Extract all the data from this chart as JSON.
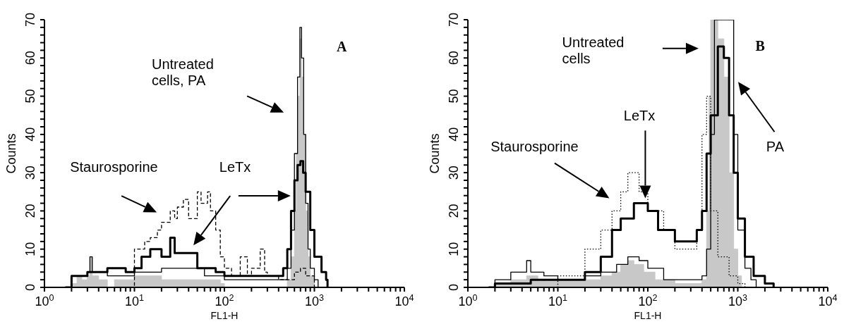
{
  "chart_data": [
    {
      "type": "step",
      "title": "A",
      "xlabel": "FL1-H",
      "ylabel": "Counts",
      "log": "x",
      "xlim": [
        1,
        10000
      ],
      "ylim": [
        0,
        70
      ],
      "xticks": [
        {
          "value": 1,
          "label": "10$^{0}$"
        },
        {
          "value": 2,
          "label": null
        },
        {
          "value": 3,
          "label": null
        },
        {
          "value": 4,
          "label": null
        },
        {
          "value": 5,
          "label": null
        },
        {
          "value": 6,
          "label": null
        },
        {
          "value": 7,
          "label": null
        },
        {
          "value": 8,
          "label": null
        },
        {
          "value": 9,
          "label": null
        },
        {
          "value": 10,
          "label": "10$^{1}$"
        },
        {
          "value": 20,
          "label": null
        },
        {
          "value": 30,
          "label": null
        },
        {
          "value": 40,
          "label": null
        },
        {
          "value": 50,
          "label": null
        },
        {
          "value": 60,
          "label": null
        },
        {
          "value": 70,
          "label": null
        },
        {
          "value": 80,
          "label": null
        },
        {
          "value": 90,
          "label": null
        },
        {
          "value": 100,
          "label": "10$^{2}$"
        },
        {
          "value": 200,
          "label": null
        },
        {
          "value": 300,
          "label": null
        },
        {
          "value": 400,
          "label": null
        },
        {
          "value": 500,
          "label": null
        },
        {
          "value": 600,
          "label": null
        },
        {
          "value": 700,
          "label": null
        },
        {
          "value": 800,
          "label": null
        },
        {
          "value": 900,
          "label": null
        },
        {
          "value": 1000,
          "label": "10$^{3}$"
        },
        {
          "value": 2000,
          "label": null
        },
        {
          "value": 3000,
          "label": null
        },
        {
          "value": 4000,
          "label": null
        },
        {
          "value": 5000,
          "label": null
        },
        {
          "value": 6000,
          "label": null
        },
        {
          "value": 7000,
          "label": null
        },
        {
          "value": 8000,
          "label": null
        },
        {
          "value": 9000,
          "label": null
        },
        {
          "value": 10000,
          "label": "10$^{4}$"
        }
      ],
      "yticks": [
        0,
        {
          "value": 2,
          "label": null
        },
        {
          "value": 4,
          "label": null
        },
        {
          "value": 6,
          "label": null
        },
        {
          "value": 8,
          "label": null
        },
        10,
        {
          "value": 12,
          "label": null
        },
        {
          "value": 14,
          "label": null
        },
        {
          "value": 16,
          "label": null
        },
        {
          "value": 18,
          "label": null
        },
        20,
        {
          "value": 22,
          "label": null
        },
        {
          "value": 24,
          "label": null
        },
        {
          "value": 26,
          "label": null
        },
        {
          "value": 28,
          "label": null
        },
        30,
        {
          "value": 32,
          "label": null
        },
        {
          "value": 34,
          "label": null
        },
        {
          "value": 36,
          "label": null
        },
        {
          "value": 38,
          "label": null
        },
        40,
        {
          "value": 42,
          "label": null
        },
        {
          "value": 44,
          "label": null
        },
        {
          "value": 46,
          "label": null
        },
        {
          "value": 48,
          "label": null
        },
        50,
        {
          "value": 52,
          "label": null
        },
        {
          "value": 54,
          "label": null
        },
        {
          "value": 56,
          "label": null
        },
        {
          "value": 58,
          "label": null
        },
        60,
        {
          "value": 62,
          "label": null
        },
        {
          "value": 64,
          "label": null
        },
        {
          "value": 66,
          "label": null
        },
        {
          "value": 68,
          "label": null
        },
        70
      ],
      "annotations": [
        "Untreated cells, PA",
        "Staurosporine",
        "LeTx"
      ],
      "series": [
        {
          "type": "area",
          "color": "#c8c8c8",
          "x": [
            1.8,
            2,
            2.3,
            2.6,
            3,
            3.2,
            3.4,
            4,
            5,
            6,
            8,
            10,
            15,
            20,
            30,
            50,
            70,
            90,
            100,
            300,
            450,
            500,
            550,
            600,
            630,
            660,
            690,
            720,
            750,
            800,
            850,
            900,
            1000
          ],
          "values": [
            0,
            1,
            3,
            2,
            3,
            8,
            3,
            2,
            0,
            2,
            2,
            3,
            3,
            2,
            2,
            2,
            2,
            1,
            0,
            0,
            0,
            2,
            8,
            20,
            35,
            50,
            65,
            55,
            40,
            20,
            8,
            3,
            0
          ]
        },
        {
          "color": "#000000",
          "line_style": "solid",
          "x": [
            1.8,
            2,
            3,
            3.2,
            3.4,
            5,
            10,
            20,
            40,
            60,
            100,
            200,
            400,
            500,
            550,
            600,
            650,
            690,
            720,
            760,
            800,
            850,
            900,
            1000,
            1100
          ],
          "values": [
            0,
            3,
            4,
            8,
            4,
            3,
            4,
            5,
            5,
            3,
            2,
            2,
            2,
            5,
            15,
            35,
            55,
            68,
            60,
            40,
            22,
            10,
            5,
            2,
            0
          ]
        },
        {
          "color": "#000000",
          "line_style": "solid",
          "x": [
            1.7,
            2,
            3,
            5,
            8,
            10,
            12,
            15,
            20,
            25,
            28,
            30,
            40,
            50,
            60,
            80,
            100,
            200,
            400,
            450,
            500,
            550,
            600,
            650,
            700,
            750,
            800,
            900,
            1000,
            1200,
            1350,
            1400
          ],
          "values": [
            0,
            3,
            4,
            5,
            4,
            5,
            8,
            10,
            8,
            13,
            9,
            9,
            9,
            5,
            5,
            4,
            3,
            3,
            3,
            5,
            10,
            20,
            28,
            32,
            33,
            30,
            25,
            15,
            8,
            4,
            2,
            0
          ]
        },
        {
          "color": "#000000",
          "line_style": "dashed",
          "x": [
            9,
            10,
            13,
            15,
            18,
            20,
            25,
            28,
            30,
            35,
            40,
            45,
            50,
            55,
            65,
            70,
            80,
            90,
            100,
            120,
            150,
            180,
            200,
            250,
            280,
            300,
            400,
            500,
            600,
            700,
            800,
            900,
            1000
          ],
          "values": [
            0,
            10,
            12,
            13,
            15,
            17,
            20,
            18,
            21,
            23,
            18,
            18,
            25,
            22,
            25,
            20,
            15,
            8,
            5,
            3,
            8,
            3,
            5,
            10,
            4,
            3,
            2,
            2,
            4,
            5,
            3,
            3,
            0
          ]
        }
      ]
    },
    {
      "type": "step",
      "title": "B",
      "xlabel": "FL1-H",
      "ylabel": "Counts",
      "log": "x",
      "xlim": [
        1,
        10000
      ],
      "ylim": [
        0,
        70
      ],
      "xticks": [
        {
          "value": 1,
          "label": "10$^{0}$"
        },
        {
          "value": 2,
          "label": null
        },
        {
          "value": 3,
          "label": null
        },
        {
          "value": 4,
          "label": null
        },
        {
          "value": 5,
          "label": null
        },
        {
          "value": 6,
          "label": null
        },
        {
          "value": 7,
          "label": null
        },
        {
          "value": 8,
          "label": null
        },
        {
          "value": 9,
          "label": null
        },
        {
          "value": 10,
          "label": "10$^{1}$"
        },
        {
          "value": 20,
          "label": null
        },
        {
          "value": 30,
          "label": null
        },
        {
          "value": 40,
          "label": null
        },
        {
          "value": 50,
          "label": null
        },
        {
          "value": 60,
          "label": null
        },
        {
          "value": 70,
          "label": null
        },
        {
          "value": 80,
          "label": null
        },
        {
          "value": 90,
          "label": null
        },
        {
          "value": 100,
          "label": "10$^{2}$"
        },
        {
          "value": 200,
          "label": null
        },
        {
          "value": 300,
          "label": null
        },
        {
          "value": 400,
          "label": null
        },
        {
          "value": 500,
          "label": null
        },
        {
          "value": 600,
          "label": null
        },
        {
          "value": 700,
          "label": null
        },
        {
          "value": 800,
          "label": null
        },
        {
          "value": 900,
          "label": null
        },
        {
          "value": 1000,
          "label": "10$^{3}$"
        },
        {
          "value": 2000,
          "label": null
        },
        {
          "value": 3000,
          "label": null
        },
        {
          "value": 4000,
          "label": null
        },
        {
          "value": 5000,
          "label": null
        },
        {
          "value": 6000,
          "label": null
        },
        {
          "value": 7000,
          "label": null
        },
        {
          "value": 8000,
          "label": null
        },
        {
          "value": 9000,
          "label": null
        },
        {
          "value": 10000,
          "label": "10$^{4}$"
        }
      ],
      "yticks": [
        0,
        {
          "value": 2,
          "label": null
        },
        {
          "value": 4,
          "label": null
        },
        {
          "value": 6,
          "label": null
        },
        {
          "value": 8,
          "label": null
        },
        10,
        {
          "value": 12,
          "label": null
        },
        {
          "value": 14,
          "label": null
        },
        {
          "value": 16,
          "label": null
        },
        {
          "value": 18,
          "label": null
        },
        20,
        {
          "value": 22,
          "label": null
        },
        {
          "value": 24,
          "label": null
        },
        {
          "value": 26,
          "label": null
        },
        {
          "value": 28,
          "label": null
        },
        30,
        {
          "value": 32,
          "label": null
        },
        {
          "value": 34,
          "label": null
        },
        {
          "value": 36,
          "label": null
        },
        {
          "value": 38,
          "label": null
        },
        40,
        {
          "value": 42,
          "label": null
        },
        {
          "value": 44,
          "label": null
        },
        {
          "value": 46,
          "label": null
        },
        {
          "value": 48,
          "label": null
        },
        50,
        {
          "value": 52,
          "label": null
        },
        {
          "value": 54,
          "label": null
        },
        {
          "value": 56,
          "label": null
        },
        {
          "value": 58,
          "label": null
        },
        60,
        {
          "value": 62,
          "label": null
        },
        {
          "value": 64,
          "label": null
        },
        {
          "value": 66,
          "label": null
        },
        {
          "value": 68,
          "label": null
        },
        70
      ],
      "annotations": [
        "Untreated cells",
        "LeTx",
        "Staurosporine",
        "PA"
      ],
      "series": [
        {
          "type": "area",
          "color": "#c8c8c8",
          "x": [
            1.7,
            2,
            3,
            4.5,
            6,
            10,
            20,
            30,
            40,
            50,
            60,
            70,
            90,
            120,
            200,
            300,
            400,
            450,
            480,
            500,
            550,
            600,
            700,
            800,
            900,
            1000,
            1100
          ],
          "values": [
            0,
            1,
            2,
            3,
            2,
            2,
            2,
            3,
            4,
            6,
            7,
            6,
            4,
            2,
            1,
            1,
            2,
            20,
            50,
            70,
            70,
            65,
            55,
            30,
            10,
            3,
            0
          ]
        },
        {
          "color": "#000000",
          "line_style": "solid",
          "x": [
            1.7,
            2,
            3,
            4.5,
            5,
            7,
            10,
            20,
            30,
            45,
            60,
            80,
            100,
            150,
            300,
            400,
            450,
            500,
            550,
            800,
            900,
            1000,
            1200,
            1400,
            1600
          ],
          "values": [
            0,
            2,
            4,
            7,
            4,
            3,
            2,
            3,
            4,
            6,
            8,
            7,
            5,
            2,
            2,
            3,
            10,
            40,
            70,
            70,
            40,
            15,
            5,
            2,
            0
          ]
        },
        {
          "color": "#000000",
          "line_style": "solid",
          "x": [
            1.7,
            2,
            5,
            10,
            20,
            30,
            40,
            50,
            70,
            100,
            130,
            200,
            300,
            350,
            400,
            450,
            500,
            600,
            700,
            800,
            900,
            1000,
            1200,
            1500,
            2000,
            2500
          ],
          "values": [
            0,
            1,
            2,
            2,
            4,
            8,
            15,
            18,
            22,
            20,
            15,
            12,
            12,
            15,
            20,
            35,
            45,
            63,
            60,
            45,
            30,
            18,
            8,
            3,
            1,
            0
          ]
        },
        {
          "color": "#000000",
          "line_style": "dotted",
          "x": [
            8,
            10,
            20,
            30,
            40,
            50,
            60,
            80,
            100,
            150,
            200,
            300,
            350,
            400,
            450,
            500,
            600,
            800,
            1000,
            1200
          ],
          "values": [
            0,
            3,
            10,
            15,
            20,
            25,
            30,
            25,
            20,
            15,
            10,
            10,
            15,
            40,
            50,
            20,
            8,
            3,
            1,
            0
          ]
        }
      ]
    }
  ]
}
